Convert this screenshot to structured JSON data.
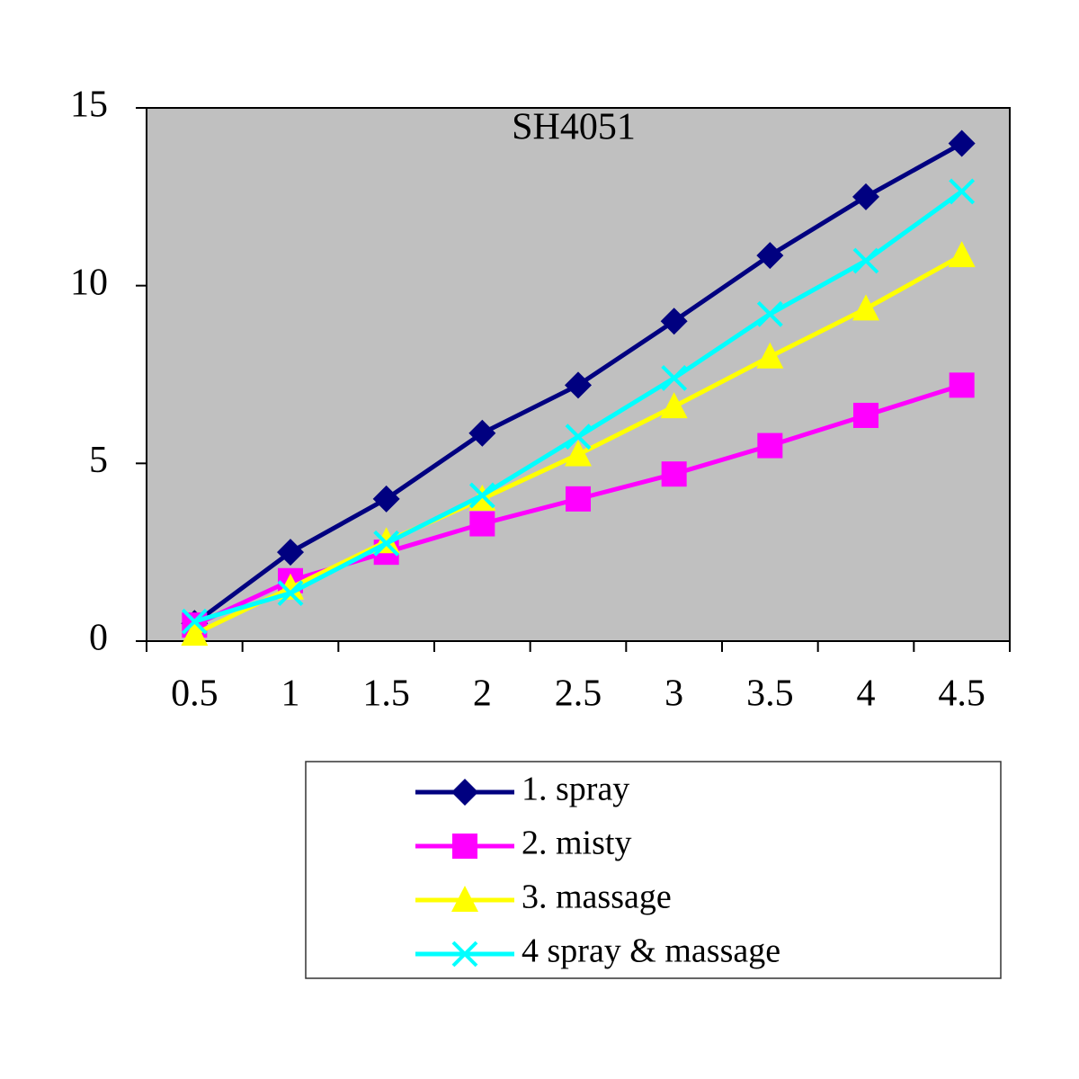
{
  "chart_data": {
    "type": "line",
    "title": "SH4051",
    "categories": [
      "0.5",
      "1",
      "1.5",
      "2",
      "2.5",
      "3",
      "3.5",
      "4",
      "4.5"
    ],
    "ylim": [
      0,
      15
    ],
    "yticks": [
      0,
      5,
      10,
      15
    ],
    "background": "#c0c0c0",
    "series": [
      {
        "name": "1. spray",
        "color": "#000080",
        "marker": "diamond",
        "values": [
          0.5,
          2.5,
          4,
          5.85,
          7.2,
          9,
          10.85,
          12.5,
          14
        ]
      },
      {
        "name": "2. misty",
        "color": "#ff00ff",
        "marker": "square",
        "values": [
          0.45,
          1.7,
          2.5,
          3.3,
          4,
          4.7,
          5.5,
          6.35,
          7.2
        ]
      },
      {
        "name": "3. massage",
        "color": "#ffff00",
        "marker": "triangle",
        "values": [
          0.2,
          1.5,
          2.8,
          4,
          5.25,
          6.6,
          8,
          9.35,
          10.85
        ]
      },
      {
        "name": "4 spray & massage",
        "color": "#00ffff",
        "marker": "x",
        "values": [
          0.55,
          1.35,
          2.75,
          4.1,
          5.75,
          7.4,
          9.2,
          10.7,
          12.65
        ]
      }
    ]
  }
}
